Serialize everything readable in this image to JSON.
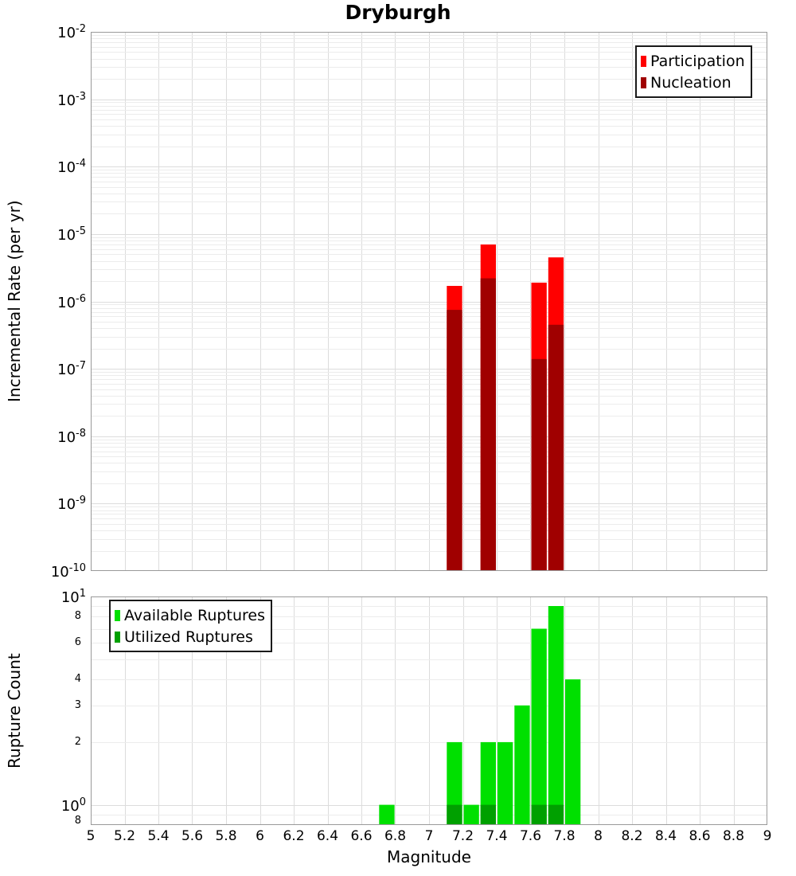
{
  "title": "Dryburgh",
  "border_color": "#999999",
  "grid_color_major": "#dcdcdc",
  "grid_color_minor": "#ececec",
  "x_axis": {
    "label": "Magnitude",
    "min": 5,
    "max": 9,
    "ticks": [
      {
        "v": 5,
        "label": "5"
      },
      {
        "v": 5.2,
        "label": "5.2"
      },
      {
        "v": 5.4,
        "label": "5.4"
      },
      {
        "v": 5.6,
        "label": "5.6"
      },
      {
        "v": 5.8,
        "label": "5.8"
      },
      {
        "v": 6,
        "label": "6"
      },
      {
        "v": 6.2,
        "label": "6.2"
      },
      {
        "v": 6.4,
        "label": "6.4"
      },
      {
        "v": 6.6,
        "label": "6.6"
      },
      {
        "v": 6.8,
        "label": "6.8"
      },
      {
        "v": 7,
        "label": "7"
      },
      {
        "v": 7.2,
        "label": "7.2"
      },
      {
        "v": 7.4,
        "label": "7.4"
      },
      {
        "v": 7.6,
        "label": "7.6"
      },
      {
        "v": 7.8,
        "label": "7.8"
      },
      {
        "v": 8,
        "label": "8"
      },
      {
        "v": 8.2,
        "label": "8.2"
      },
      {
        "v": 8.4,
        "label": "8.4"
      },
      {
        "v": 8.6,
        "label": "8.6"
      },
      {
        "v": 8.8,
        "label": "8.8"
      },
      {
        "v": 9,
        "label": "9"
      }
    ]
  },
  "chart_data": [
    {
      "type": "bar",
      "panel": "incremental-rate",
      "title": "Dryburgh",
      "xlabel": "",
      "ylabel": "Incremental Rate (per yr)",
      "y_scale": "log",
      "y_min": 1e-10,
      "y_max": 0.01,
      "y_tick_exponents": [
        -2,
        -3,
        -4,
        -5,
        -6,
        -7,
        -8,
        -9,
        -10
      ],
      "grid": true,
      "legend_position": "top-right",
      "bin_width": 0.1,
      "x": [
        7.15,
        7.35,
        7.65,
        7.75
      ],
      "series": [
        {
          "name": "Participation",
          "color": "#ff0000",
          "values": [
            1.7e-06,
            7e-06,
            1.9e-06,
            4.5e-06
          ]
        },
        {
          "name": "Nucleation",
          "color": "#a00000",
          "values": [
            7.5e-07,
            2.2e-06,
            1.4e-07,
            4.5e-07
          ]
        }
      ]
    },
    {
      "type": "bar",
      "panel": "rupture-count",
      "xlabel": "Magnitude",
      "ylabel": "Rupture Count",
      "y_scale": "log",
      "y_min": 0.8,
      "y_max": 10,
      "y_major_ticks": [
        {
          "v": 10,
          "exp": "1"
        },
        {
          "v": 1,
          "exp": "0"
        }
      ],
      "y_minor_ticks": [
        {
          "v": 8,
          "label": "8"
        },
        {
          "v": 6,
          "label": "6"
        },
        {
          "v": 4,
          "label": "4"
        },
        {
          "v": 3,
          "label": "3"
        },
        {
          "v": 2,
          "label": "2"
        },
        {
          "v": 0.8,
          "label": "8"
        }
      ],
      "grid": true,
      "legend_position": "top-left",
      "bin_width": 0.1,
      "x": [
        6.75,
        7.15,
        7.25,
        7.35,
        7.45,
        7.55,
        7.65,
        7.75,
        7.85
      ],
      "series": [
        {
          "name": "Available Ruptures",
          "color": "#00e000",
          "values": [
            1,
            2,
            1,
            2,
            2,
            3,
            7,
            9,
            4
          ]
        },
        {
          "name": "Utilized Ruptures",
          "color": "#00a000",
          "values": [
            0,
            1,
            0,
            1,
            0,
            0,
            1,
            1,
            0
          ]
        }
      ]
    }
  ]
}
